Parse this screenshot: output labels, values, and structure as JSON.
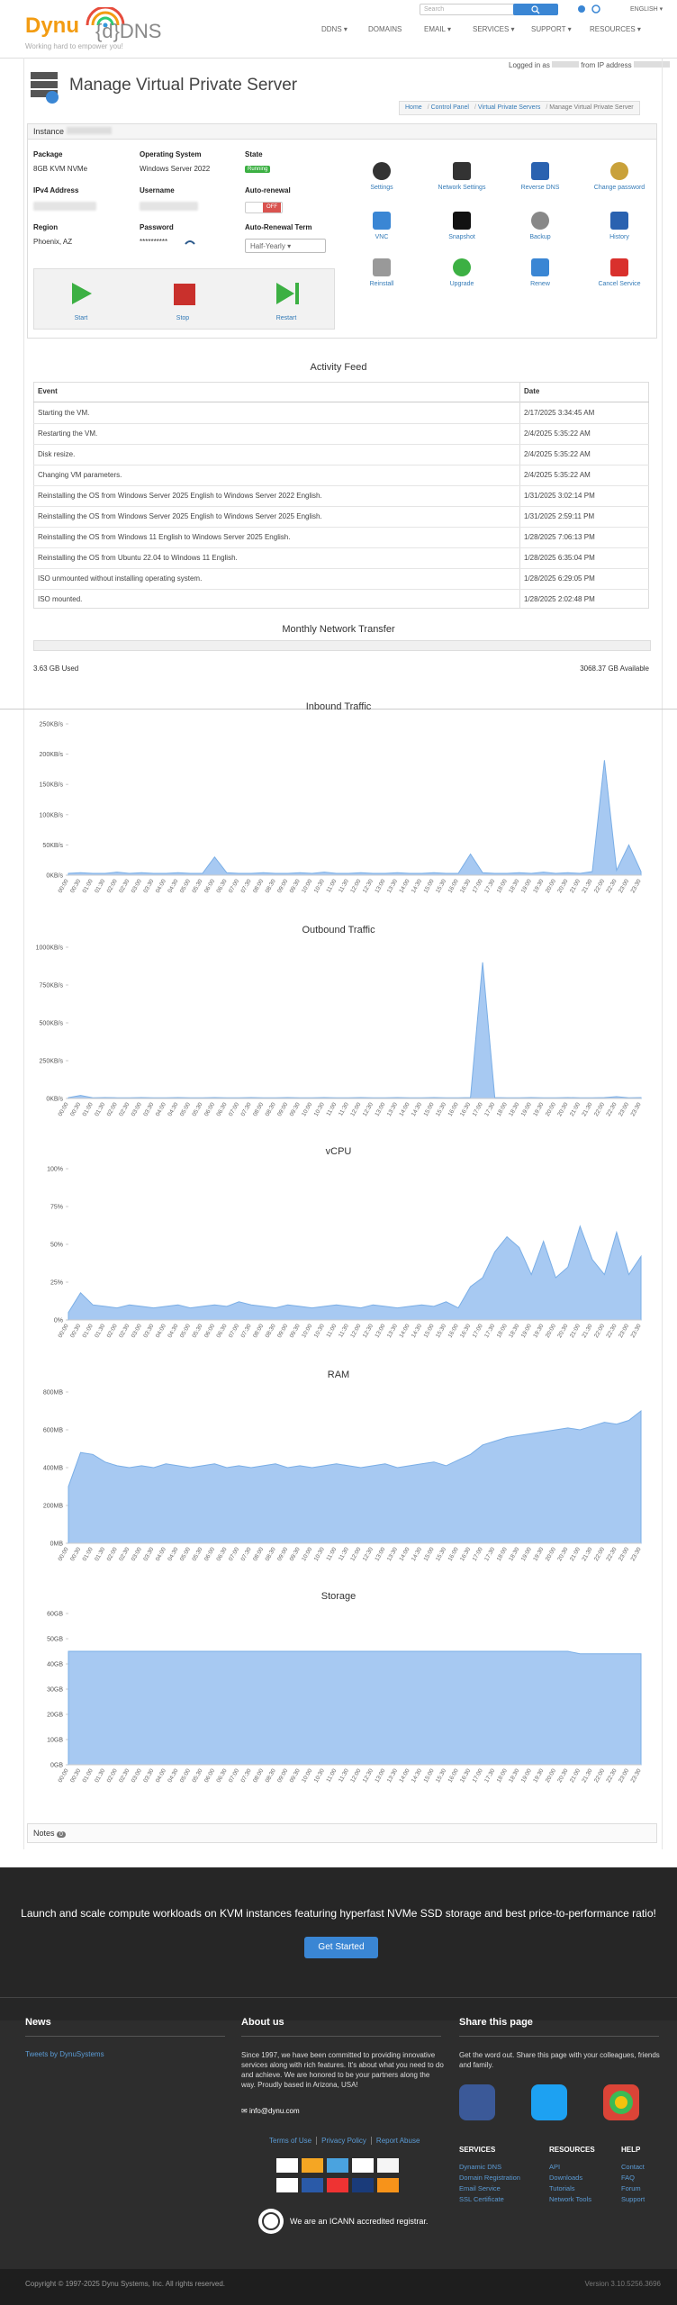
{
  "header": {
    "logo": "Dynu",
    "logo_dns": "{d}DNS",
    "tagline": "Working hard to empower you!",
    "search_placeholder": "Search",
    "language": "ENGLISH",
    "nav": [
      "DDNS",
      "DOMAINS",
      "EMAIL",
      "SERVICES",
      "SUPPORT",
      "RESOURCES"
    ],
    "logged_in": "Logged in as",
    "from_ip": "from IP address"
  },
  "page": {
    "title": "Manage Virtual Private Server",
    "breadcrumb": [
      "Home",
      "Control Panel",
      "Virtual Private Servers",
      "Manage Virtual Private Server"
    ]
  },
  "instance": {
    "heading": "Instance",
    "package": {
      "label": "Package",
      "value": "8GB KVM NVMe"
    },
    "os": {
      "label": "Operating System",
      "value": "Windows Server 2022"
    },
    "state": {
      "label": "State",
      "value": "Running"
    },
    "ipv4": {
      "label": "IPv4 Address"
    },
    "username": {
      "label": "Username"
    },
    "auto_renewal": {
      "label": "Auto-renewal",
      "value": "OFF"
    },
    "region": {
      "label": "Region",
      "value": "Phoenix, AZ"
    },
    "password": {
      "label": "Password",
      "value": "**********"
    },
    "renewal_term": {
      "label": "Auto-Renewal Term",
      "value": "Half-Yearly"
    },
    "power": [
      "Start",
      "Stop",
      "Restart"
    ],
    "tools": [
      "Settings",
      "Network Settings",
      "Reverse DNS",
      "Change password",
      "VNC",
      "Snapshot",
      "Backup",
      "History",
      "Reinstall",
      "Upgrade",
      "Renew",
      "Cancel Service"
    ]
  },
  "activity": {
    "title": "Activity Feed",
    "columns": [
      "Event",
      "Date"
    ],
    "rows": [
      [
        "Starting the VM.",
        "2/17/2025 3:34:45 AM"
      ],
      [
        "Restarting the VM.",
        "2/4/2025 5:35:22 AM"
      ],
      [
        "Disk resize.",
        "2/4/2025 5:35:22 AM"
      ],
      [
        "Changing VM parameters.",
        "2/4/2025 5:35:22 AM"
      ],
      [
        "Reinstalling the OS from Windows Server 2025 English to Windows Server 2022 English.",
        "1/31/2025 3:02:14 PM"
      ],
      [
        "Reinstalling the OS from Windows Server 2025 English to Windows Server 2025 English.",
        "1/31/2025 2:59:11 PM"
      ],
      [
        "Reinstalling the OS from Windows 11 English to Windows Server 2025 English.",
        "1/28/2025 7:06:13 PM"
      ],
      [
        "Reinstalling the OS from Ubuntu 22.04 to Windows 11 English.",
        "1/28/2025 6:35:04 PM"
      ],
      [
        "ISO unmounted without installing operating system.",
        "1/28/2025 6:29:05 PM"
      ],
      [
        "ISO mounted.",
        "1/28/2025 2:02:48 PM"
      ]
    ]
  },
  "transfer": {
    "title": "Monthly Network Transfer",
    "used": "3.63 GB Used",
    "available": "3068.37 GB Available"
  },
  "chart_data": [
    {
      "type": "area",
      "title": "Inbound Traffic",
      "color": "#a7c9f2",
      "line_color": "#7aaee6",
      "x": [
        "00:00",
        "00:30",
        "01:00",
        "01:30",
        "02:00",
        "02:30",
        "03:00",
        "03:30",
        "04:00",
        "04:30",
        "05:00",
        "05:30",
        "06:00",
        "06:30",
        "07:00",
        "07:30",
        "08:00",
        "08:30",
        "09:00",
        "09:30",
        "10:00",
        "10:30",
        "11:00",
        "11:30",
        "12:00",
        "12:30",
        "13:00",
        "13:30",
        "14:00",
        "14:30",
        "15:00",
        "15:30",
        "16:00",
        "16:30",
        "17:00",
        "17:30",
        "18:00",
        "18:30",
        "19:00",
        "19:30",
        "20:00",
        "20:30",
        "21:00",
        "21:30",
        "22:00",
        "22:30",
        "23:00",
        "23:30"
      ],
      "values": [
        3,
        4,
        3,
        3,
        5,
        3,
        4,
        3,
        3,
        4,
        3,
        3,
        30,
        4,
        3,
        3,
        4,
        3,
        3,
        4,
        3,
        5,
        3,
        3,
        4,
        3,
        3,
        4,
        3,
        3,
        4,
        3,
        3,
        35,
        4,
        3,
        3,
        4,
        3,
        5,
        3,
        4,
        3,
        6,
        190,
        8,
        50,
        6
      ],
      "ylim": [
        0,
        250
      ],
      "yticks": [
        {
          "value": 0,
          "label": "0KB/s"
        },
        {
          "value": 50,
          "label": "50KB/s"
        },
        {
          "value": 100,
          "label": "100KB/s"
        },
        {
          "value": 150,
          "label": "150KB/s"
        },
        {
          "value": 200,
          "label": "200KB/s"
        },
        {
          "value": 250,
          "label": "250KB/s"
        }
      ]
    },
    {
      "type": "area",
      "title": "Outbound Traffic",
      "color": "#a7c9f2",
      "line_color": "#7aaee6",
      "x": [
        "00:00",
        "00:30",
        "01:00",
        "01:30",
        "02:00",
        "02:30",
        "03:00",
        "03:30",
        "04:00",
        "04:30",
        "05:00",
        "05:30",
        "06:00",
        "06:30",
        "07:00",
        "07:30",
        "08:00",
        "08:30",
        "09:00",
        "09:30",
        "10:00",
        "10:30",
        "11:00",
        "11:30",
        "12:00",
        "12:30",
        "13:00",
        "13:30",
        "14:00",
        "14:30",
        "15:00",
        "15:30",
        "16:00",
        "16:30",
        "17:00",
        "17:30",
        "18:00",
        "18:30",
        "19:00",
        "19:30",
        "20:00",
        "20:30",
        "21:00",
        "21:30",
        "22:00",
        "22:30",
        "23:00",
        "23:30"
      ],
      "values": [
        6,
        20,
        5,
        6,
        5,
        5,
        6,
        5,
        5,
        6,
        5,
        5,
        6,
        5,
        5,
        6,
        5,
        5,
        6,
        5,
        5,
        6,
        5,
        5,
        6,
        5,
        5,
        6,
        5,
        5,
        6,
        5,
        5,
        6,
        900,
        6,
        5,
        5,
        6,
        5,
        5,
        6,
        5,
        5,
        6,
        12,
        5,
        6
      ],
      "ylim": [
        0,
        1000
      ],
      "yticks": [
        {
          "value": 0,
          "label": "0KB/s"
        },
        {
          "value": 250,
          "label": "250KB/s"
        },
        {
          "value": 500,
          "label": "500KB/s"
        },
        {
          "value": 750,
          "label": "750KB/s"
        },
        {
          "value": 1000,
          "label": "1000KB/s"
        }
      ]
    },
    {
      "type": "area",
      "title": "vCPU",
      "color": "#a7c9f2",
      "line_color": "#7aaee6",
      "x": [
        "00:00",
        "00:30",
        "01:00",
        "01:30",
        "02:00",
        "02:30",
        "03:00",
        "03:30",
        "04:00",
        "04:30",
        "05:00",
        "05:30",
        "06:00",
        "06:30",
        "07:00",
        "07:30",
        "08:00",
        "08:30",
        "09:00",
        "09:30",
        "10:00",
        "10:30",
        "11:00",
        "11:30",
        "12:00",
        "12:30",
        "13:00",
        "13:30",
        "14:00",
        "14:30",
        "15:00",
        "15:30",
        "16:00",
        "16:30",
        "17:00",
        "17:30",
        "18:00",
        "18:30",
        "19:00",
        "19:30",
        "20:00",
        "20:30",
        "21:00",
        "21:30",
        "22:00",
        "22:30",
        "23:00",
        "23:30"
      ],
      "values": [
        5,
        18,
        10,
        9,
        8,
        10,
        9,
        8,
        9,
        10,
        8,
        9,
        10,
        9,
        12,
        10,
        9,
        8,
        10,
        9,
        8,
        9,
        10,
        9,
        8,
        10,
        9,
        8,
        9,
        10,
        9,
        12,
        8,
        22,
        28,
        45,
        55,
        48,
        30,
        52,
        28,
        35,
        62,
        40,
        30,
        58,
        30,
        42
      ],
      "ylim": [
        0,
        100
      ],
      "yticks": [
        {
          "value": 0,
          "label": "0%"
        },
        {
          "value": 25,
          "label": "25%"
        },
        {
          "value": 50,
          "label": "50%"
        },
        {
          "value": 75,
          "label": "75%"
        },
        {
          "value": 100,
          "label": "100%"
        }
      ]
    },
    {
      "type": "area",
      "title": "RAM",
      "color": "#a7c9f2",
      "line_color": "#7aaee6",
      "x": [
        "00:00",
        "00:30",
        "01:00",
        "01:30",
        "02:00",
        "02:30",
        "03:00",
        "03:30",
        "04:00",
        "04:30",
        "05:00",
        "05:30",
        "06:00",
        "06:30",
        "07:00",
        "07:30",
        "08:00",
        "08:30",
        "09:00",
        "09:30",
        "10:00",
        "10:30",
        "11:00",
        "11:30",
        "12:00",
        "12:30",
        "13:00",
        "13:30",
        "14:00",
        "14:30",
        "15:00",
        "15:30",
        "16:00",
        "16:30",
        "17:00",
        "17:30",
        "18:00",
        "18:30",
        "19:00",
        "19:30",
        "20:00",
        "20:30",
        "21:00",
        "21:30",
        "22:00",
        "22:30",
        "23:00",
        "23:30"
      ],
      "values": [
        300,
        480,
        470,
        430,
        410,
        400,
        410,
        400,
        420,
        410,
        400,
        410,
        420,
        400,
        410,
        400,
        410,
        420,
        400,
        410,
        400,
        410,
        420,
        410,
        400,
        410,
        420,
        400,
        410,
        420,
        430,
        410,
        440,
        470,
        520,
        540,
        560,
        570,
        580,
        590,
        600,
        610,
        600,
        620,
        640,
        630,
        650,
        700
      ],
      "ylim": [
        0,
        800
      ],
      "yticks": [
        {
          "value": 0,
          "label": "0MB"
        },
        {
          "value": 200,
          "label": "200MB"
        },
        {
          "value": 400,
          "label": "400MB"
        },
        {
          "value": 600,
          "label": "600MB"
        },
        {
          "value": 800,
          "label": "800MB"
        }
      ]
    },
    {
      "type": "area",
      "title": "Storage",
      "color": "#a7c9f2",
      "line_color": "#7aaee6",
      "x": [
        "00:00",
        "00:30",
        "01:00",
        "01:30",
        "02:00",
        "02:30",
        "03:00",
        "03:30",
        "04:00",
        "04:30",
        "05:00",
        "05:30",
        "06:00",
        "06:30",
        "07:00",
        "07:30",
        "08:00",
        "08:30",
        "09:00",
        "09:30",
        "10:00",
        "10:30",
        "11:00",
        "11:30",
        "12:00",
        "12:30",
        "13:00",
        "13:30",
        "14:00",
        "14:30",
        "15:00",
        "15:30",
        "16:00",
        "16:30",
        "17:00",
        "17:30",
        "18:00",
        "18:30",
        "19:00",
        "19:30",
        "20:00",
        "20:30",
        "21:00",
        "21:30",
        "22:00",
        "22:30",
        "23:00",
        "23:30"
      ],
      "values": [
        45,
        45,
        45,
        45,
        45,
        45,
        45,
        45,
        45,
        45,
        45,
        45,
        45,
        45,
        45,
        45,
        45,
        45,
        45,
        45,
        45,
        45,
        45,
        45,
        45,
        45,
        45,
        45,
        45,
        45,
        45,
        45,
        45,
        45,
        45,
        45,
        45,
        45,
        45,
        45,
        45,
        45,
        44,
        44,
        44,
        44,
        44,
        44
      ],
      "ylim": [
        0,
        60
      ],
      "yticks": [
        {
          "value": 0,
          "label": "0GB"
        },
        {
          "value": 10,
          "label": "10GB"
        },
        {
          "value": 20,
          "label": "20GB"
        },
        {
          "value": 30,
          "label": "30GB"
        },
        {
          "value": 40,
          "label": "40GB"
        },
        {
          "value": 50,
          "label": "50GB"
        },
        {
          "value": 60,
          "label": "60GB"
        }
      ]
    }
  ],
  "notes": {
    "label": "Notes",
    "count": 0
  },
  "footer": {
    "banner": "Launch and scale compute workloads on KVM instances featuring hyperfast NVMe SSD storage and best price-to-performance ratio!",
    "cta": "Get Started",
    "news": {
      "title": "News",
      "link": "Tweets by DynuSystems"
    },
    "about": {
      "title": "About us",
      "text": "Since 1997, we have been committed to providing innovative services along with rich features. It's about what you need to do and achieve. We are honored to be your partners along the way. Proudly based in Arizona, USA!",
      "email": "info@dynu.com",
      "links": [
        "Terms of Use",
        "Privacy Policy",
        "Report Abuse"
      ],
      "icann": "We are an ICANN accredited registrar."
    },
    "share": {
      "title": "Share this page",
      "text": "Get the word out. Share this page with your colleagues, friends and family."
    },
    "columns": [
      {
        "title": "SERVICES",
        "links": [
          "Dynamic DNS",
          "Domain Registration",
          "Email Service",
          "SSL Certificate"
        ]
      },
      {
        "title": "RESOURCES",
        "links": [
          "API",
          "Downloads",
          "Tutorials",
          "Network Tools"
        ]
      },
      {
        "title": "HELP",
        "links": [
          "Contact",
          "FAQ",
          "Forum",
          "Support"
        ]
      }
    ],
    "copyright": "Copyright © 1997-2025 Dynu Systems, Inc. All rights reserved.",
    "version": "Version 3.10.5256.3696"
  }
}
